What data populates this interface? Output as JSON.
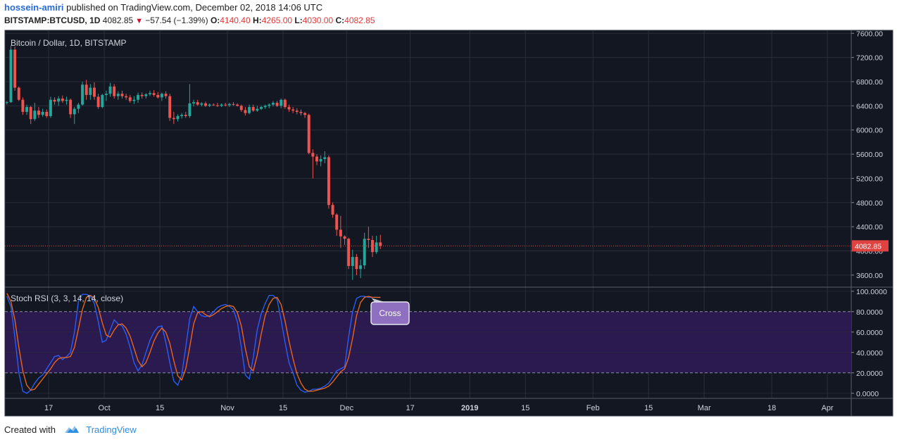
{
  "header": {
    "author": "hossein-amiri",
    "published_text": "published on TradingView.com, December 02, 2018 14:06 UTC",
    "symbol": "BITSTAMP:BTCUSD, 1D",
    "last": "4082.85",
    "change": "−57.54 (−1.39%)",
    "open_label": "O:",
    "open": "4140.40",
    "high_label": "H:",
    "high": "4265.00",
    "low_label": "L:",
    "low": "4030.00",
    "close_label": "C:",
    "close": "4082.85"
  },
  "footer": {
    "created_with": "Created with",
    "brand": "TradingView"
  },
  "colors": {
    "background": "#131722",
    "grid": "#2a2e39",
    "up": "#26a69a",
    "down": "#ef5350",
    "band": "#2b1a4f",
    "k_line": "#2962ff",
    "d_line": "#f26a1b",
    "price_tag": "#e0433f"
  },
  "chart_data": [
    {
      "type": "candlestick",
      "title": "Bitcoin / Dollar, 1D, BITSTAMP",
      "last_price_label": "4082.85",
      "ylim": [
        3400,
        7650
      ],
      "yticks": [
        "7600.00",
        "7200.00",
        "6800.00",
        "6400.00",
        "6000.00",
        "5600.00",
        "5200.00",
        "4800.00",
        "4400.00",
        "4000.00",
        "3600.00"
      ],
      "xticks": [
        "17",
        "Oct",
        "15",
        "Nov",
        "15",
        "Dec",
        "17",
        "2019",
        "15",
        "Feb",
        "15",
        "Mar",
        "18",
        "Apr"
      ],
      "x_range": [
        "2018-09-06",
        "2019-04-07"
      ],
      "candles": [
        {
          "date": "2018-09-06",
          "o": 6450,
          "h": 6480,
          "l": 6420,
          "c": 6460
        },
        {
          "date": "2018-09-07",
          "o": 6460,
          "h": 7400,
          "l": 6450,
          "c": 7330
        },
        {
          "date": "2018-09-08",
          "o": 7330,
          "h": 7380,
          "l": 6650,
          "c": 6700
        },
        {
          "date": "2018-09-09",
          "o": 6700,
          "h": 6720,
          "l": 6480,
          "c": 6500
        },
        {
          "date": "2018-09-10",
          "o": 6500,
          "h": 6540,
          "l": 6250,
          "c": 6300
        },
        {
          "date": "2018-09-11",
          "o": 6300,
          "h": 6420,
          "l": 6250,
          "c": 6380
        },
        {
          "date": "2018-09-12",
          "o": 6380,
          "h": 6400,
          "l": 6100,
          "c": 6180
        },
        {
          "date": "2018-09-13",
          "o": 6180,
          "h": 6450,
          "l": 6150,
          "c": 6320
        },
        {
          "date": "2018-09-14",
          "o": 6320,
          "h": 6380,
          "l": 6200,
          "c": 6250
        },
        {
          "date": "2018-09-15",
          "o": 6250,
          "h": 6350,
          "l": 6220,
          "c": 6300
        },
        {
          "date": "2018-09-16",
          "o": 6300,
          "h": 6340,
          "l": 6200,
          "c": 6230
        },
        {
          "date": "2018-09-17",
          "o": 6230,
          "h": 6550,
          "l": 6200,
          "c": 6500
        },
        {
          "date": "2018-09-18",
          "o": 6500,
          "h": 6540,
          "l": 6420,
          "c": 6470
        },
        {
          "date": "2018-09-19",
          "o": 6470,
          "h": 6560,
          "l": 6400,
          "c": 6520
        },
        {
          "date": "2018-09-20",
          "o": 6520,
          "h": 6570,
          "l": 6450,
          "c": 6480
        },
        {
          "date": "2018-09-21",
          "o": 6480,
          "h": 6550,
          "l": 6420,
          "c": 6500
        },
        {
          "date": "2018-09-22",
          "o": 6500,
          "h": 6520,
          "l": 6200,
          "c": 6260
        },
        {
          "date": "2018-09-23",
          "o": 6260,
          "h": 6380,
          "l": 6100,
          "c": 6350
        },
        {
          "date": "2018-09-24",
          "o": 6350,
          "h": 6450,
          "l": 6280,
          "c": 6420
        },
        {
          "date": "2018-09-25",
          "o": 6420,
          "h": 6800,
          "l": 6400,
          "c": 6750
        },
        {
          "date": "2018-09-26",
          "o": 6750,
          "h": 6830,
          "l": 6500,
          "c": 6580
        },
        {
          "date": "2018-09-27",
          "o": 6580,
          "h": 6760,
          "l": 6500,
          "c": 6700
        },
        {
          "date": "2018-09-28",
          "o": 6700,
          "h": 6790,
          "l": 6500,
          "c": 6550
        },
        {
          "date": "2018-09-29",
          "o": 6550,
          "h": 6600,
          "l": 6350,
          "c": 6380
        },
        {
          "date": "2018-09-30",
          "o": 6380,
          "h": 6600,
          "l": 6360,
          "c": 6580
        },
        {
          "date": "2018-10-01",
          "o": 6580,
          "h": 6650,
          "l": 6480,
          "c": 6600
        },
        {
          "date": "2018-10-02",
          "o": 6600,
          "h": 6780,
          "l": 6550,
          "c": 6720
        },
        {
          "date": "2018-10-03",
          "o": 6720,
          "h": 6760,
          "l": 6520,
          "c": 6560
        },
        {
          "date": "2018-10-04",
          "o": 6560,
          "h": 6640,
          "l": 6500,
          "c": 6600
        },
        {
          "date": "2018-10-05",
          "o": 6600,
          "h": 6650,
          "l": 6520,
          "c": 6560
        },
        {
          "date": "2018-10-06",
          "o": 6560,
          "h": 6600,
          "l": 6500,
          "c": 6540
        },
        {
          "date": "2018-10-07",
          "o": 6540,
          "h": 6580,
          "l": 6450,
          "c": 6480
        },
        {
          "date": "2018-10-08",
          "o": 6480,
          "h": 6560,
          "l": 6430,
          "c": 6500
        },
        {
          "date": "2018-10-09",
          "o": 6500,
          "h": 6620,
          "l": 6450,
          "c": 6580
        },
        {
          "date": "2018-10-10",
          "o": 6580,
          "h": 6620,
          "l": 6520,
          "c": 6560
        },
        {
          "date": "2018-10-11",
          "o": 6560,
          "h": 6610,
          "l": 6520,
          "c": 6590
        },
        {
          "date": "2018-10-12",
          "o": 6590,
          "h": 6650,
          "l": 6560,
          "c": 6610
        },
        {
          "date": "2018-10-13",
          "o": 6610,
          "h": 6660,
          "l": 6550,
          "c": 6580
        },
        {
          "date": "2018-10-14",
          "o": 6580,
          "h": 6630,
          "l": 6520,
          "c": 6540
        },
        {
          "date": "2018-10-15",
          "o": 6540,
          "h": 6620,
          "l": 6480,
          "c": 6600
        },
        {
          "date": "2018-10-16",
          "o": 6600,
          "h": 6640,
          "l": 6520,
          "c": 6560
        },
        {
          "date": "2018-10-17",
          "o": 6560,
          "h": 6600,
          "l": 6150,
          "c": 6200
        },
        {
          "date": "2018-10-18",
          "o": 6200,
          "h": 6300,
          "l": 6100,
          "c": 6180
        },
        {
          "date": "2018-10-19",
          "o": 6180,
          "h": 6260,
          "l": 6140,
          "c": 6230
        },
        {
          "date": "2018-10-20",
          "o": 6230,
          "h": 6280,
          "l": 6190,
          "c": 6250
        },
        {
          "date": "2018-10-21",
          "o": 6250,
          "h": 6300,
          "l": 6200,
          "c": 6230
        },
        {
          "date": "2018-10-22",
          "o": 6230,
          "h": 6760,
          "l": 6200,
          "c": 6440
        },
        {
          "date": "2018-10-23",
          "o": 6440,
          "h": 6500,
          "l": 6390,
          "c": 6460
        },
        {
          "date": "2018-10-24",
          "o": 6460,
          "h": 6500,
          "l": 6400,
          "c": 6420
        },
        {
          "date": "2018-10-25",
          "o": 6420,
          "h": 6460,
          "l": 6390,
          "c": 6440
        },
        {
          "date": "2018-10-26",
          "o": 6440,
          "h": 6470,
          "l": 6380,
          "c": 6400
        },
        {
          "date": "2018-10-27",
          "o": 6400,
          "h": 6440,
          "l": 6380,
          "c": 6420
        },
        {
          "date": "2018-10-28",
          "o": 6420,
          "h": 6440,
          "l": 6400,
          "c": 6410
        },
        {
          "date": "2018-10-29",
          "o": 6410,
          "h": 6450,
          "l": 6380,
          "c": 6400
        },
        {
          "date": "2018-10-30",
          "o": 6400,
          "h": 6440,
          "l": 6380,
          "c": 6420
        },
        {
          "date": "2018-10-31",
          "o": 6420,
          "h": 6450,
          "l": 6390,
          "c": 6410
        },
        {
          "date": "2018-11-01",
          "o": 6410,
          "h": 6450,
          "l": 6380,
          "c": 6430
        },
        {
          "date": "2018-11-02",
          "o": 6430,
          "h": 6460,
          "l": 6400,
          "c": 6420
        },
        {
          "date": "2018-11-03",
          "o": 6420,
          "h": 6440,
          "l": 6390,
          "c": 6400
        },
        {
          "date": "2018-11-04",
          "o": 6400,
          "h": 6420,
          "l": 6300,
          "c": 6330
        },
        {
          "date": "2018-11-05",
          "o": 6330,
          "h": 6380,
          "l": 6240,
          "c": 6280
        },
        {
          "date": "2018-11-06",
          "o": 6280,
          "h": 6420,
          "l": 6260,
          "c": 6380
        },
        {
          "date": "2018-11-07",
          "o": 6380,
          "h": 6420,
          "l": 6300,
          "c": 6320
        },
        {
          "date": "2018-11-08",
          "o": 6320,
          "h": 6400,
          "l": 6300,
          "c": 6350
        },
        {
          "date": "2018-11-09",
          "o": 6350,
          "h": 6400,
          "l": 6330,
          "c": 6380
        },
        {
          "date": "2018-11-10",
          "o": 6380,
          "h": 6420,
          "l": 6350,
          "c": 6400
        },
        {
          "date": "2018-11-11",
          "o": 6400,
          "h": 6440,
          "l": 6360,
          "c": 6420
        },
        {
          "date": "2018-11-12",
          "o": 6420,
          "h": 6480,
          "l": 6390,
          "c": 6450
        },
        {
          "date": "2018-11-13",
          "o": 6450,
          "h": 6480,
          "l": 6380,
          "c": 6400
        },
        {
          "date": "2018-11-14",
          "o": 6400,
          "h": 6520,
          "l": 6360,
          "c": 6500
        },
        {
          "date": "2018-11-15",
          "o": 6500,
          "h": 6520,
          "l": 6350,
          "c": 6380
        },
        {
          "date": "2018-11-16",
          "o": 6380,
          "h": 6420,
          "l": 6300,
          "c": 6340
        },
        {
          "date": "2018-11-17",
          "o": 6340,
          "h": 6380,
          "l": 6280,
          "c": 6320
        },
        {
          "date": "2018-11-18",
          "o": 6320,
          "h": 6360,
          "l": 6260,
          "c": 6300
        },
        {
          "date": "2018-11-19",
          "o": 6300,
          "h": 6340,
          "l": 6240,
          "c": 6280
        },
        {
          "date": "2018-11-20",
          "o": 6280,
          "h": 6300,
          "l": 6200,
          "c": 6250
        },
        {
          "date": "2018-11-21",
          "o": 6250,
          "h": 6270,
          "l": 5600,
          "c": 5620
        },
        {
          "date": "2018-11-22",
          "o": 5620,
          "h": 5680,
          "l": 5200,
          "c": 5560
        },
        {
          "date": "2018-11-23",
          "o": 5560,
          "h": 5600,
          "l": 5420,
          "c": 5480
        },
        {
          "date": "2018-11-24",
          "o": 5480,
          "h": 5580,
          "l": 5400,
          "c": 5520
        },
        {
          "date": "2018-11-25",
          "o": 5520,
          "h": 5650,
          "l": 5450,
          "c": 5550
        },
        {
          "date": "2018-11-26",
          "o": 5550,
          "h": 5580,
          "l": 4700,
          "c": 4760
        },
        {
          "date": "2018-11-27",
          "o": 4760,
          "h": 4800,
          "l": 4550,
          "c": 4600
        },
        {
          "date": "2018-11-28",
          "o": 4600,
          "h": 4620,
          "l": 4250,
          "c": 4350
        },
        {
          "date": "2018-11-29",
          "o": 4350,
          "h": 4580,
          "l": 4050,
          "c": 4240
        },
        {
          "date": "2018-11-30",
          "o": 4240,
          "h": 4260,
          "l": 4100,
          "c": 4200
        },
        {
          "date": "2018-12-01",
          "o": 4200,
          "h": 4220,
          "l": 3700,
          "c": 3750
        },
        {
          "date": "2018-12-02",
          "o": 3750,
          "h": 4020,
          "l": 3520,
          "c": 3900
        },
        {
          "date": "2018-12-03",
          "o": 3900,
          "h": 3950,
          "l": 3600,
          "c": 3700
        },
        {
          "date": "2018-12-04",
          "o": 3700,
          "h": 3860,
          "l": 3550,
          "c": 3760
        },
        {
          "date": "2018-12-05",
          "o": 3760,
          "h": 4300,
          "l": 3700,
          "c": 4200
        },
        {
          "date": "2018-12-06",
          "o": 4200,
          "h": 4400,
          "l": 4050,
          "c": 4180
        },
        {
          "date": "2018-12-07",
          "o": 4180,
          "h": 4250,
          "l": 3900,
          "c": 3980
        },
        {
          "date": "2018-12-08",
          "o": 3980,
          "h": 4250,
          "l": 3950,
          "c": 4140
        },
        {
          "date": "2018-12-09",
          "o": 4140.4,
          "h": 4265,
          "l": 4030,
          "c": 4082.85
        }
      ]
    },
    {
      "type": "line",
      "title": "Stoch RSI (3, 3, 14, 14, close)",
      "ylim": [
        -5,
        104
      ],
      "yticks": [
        "100.0000",
        "80.0000",
        "60.0000",
        "40.0000",
        "20.0000",
        "0.0000"
      ],
      "band": [
        20,
        80
      ],
      "annotation": "Cross",
      "series": [
        {
          "name": "K",
          "values": [
            95,
            85,
            55,
            20,
            2,
            0,
            3,
            10,
            15,
            18,
            24,
            30,
            36,
            37,
            33,
            36,
            40,
            60,
            90,
            97,
            97,
            95,
            88,
            70,
            50,
            52,
            62,
            72,
            68,
            66,
            58,
            45,
            30,
            22,
            28,
            40,
            52,
            60,
            65,
            66,
            50,
            30,
            12,
            8,
            18,
            45,
            73,
            85,
            80,
            76,
            75,
            76,
            80,
            84,
            86,
            87,
            85,
            82,
            70,
            45,
            18,
            14,
            35,
            62,
            78,
            88,
            96,
            96,
            92,
            72,
            50,
            30,
            20,
            8,
            3,
            1,
            2,
            4,
            4,
            5,
            7,
            10,
            16,
            22,
            24,
            26,
            55,
            80,
            93,
            95,
            95,
            94,
            94,
            94,
            94
          ]
        },
        {
          "name": "D",
          "values": [
            98,
            90,
            72,
            45,
            22,
            8,
            3,
            4,
            9,
            14,
            19,
            24,
            30,
            34,
            35,
            35,
            36,
            45,
            63,
            82,
            94,
            96,
            93,
            84,
            69,
            57,
            55,
            62,
            67,
            68,
            64,
            56,
            44,
            32,
            26,
            30,
            40,
            51,
            59,
            64,
            60,
            49,
            32,
            17,
            13,
            24,
            45,
            68,
            79,
            80,
            77,
            75,
            77,
            80,
            83,
            85,
            86,
            85,
            79,
            66,
            44,
            26,
            22,
            37,
            58,
            76,
            87,
            93,
            94,
            87,
            71,
            51,
            34,
            19,
            10,
            4,
            2,
            2,
            3,
            4,
            5,
            7,
            11,
            16,
            21,
            24,
            35,
            54,
            76,
            89,
            94,
            95,
            94,
            94,
            94
          ]
        }
      ]
    }
  ]
}
